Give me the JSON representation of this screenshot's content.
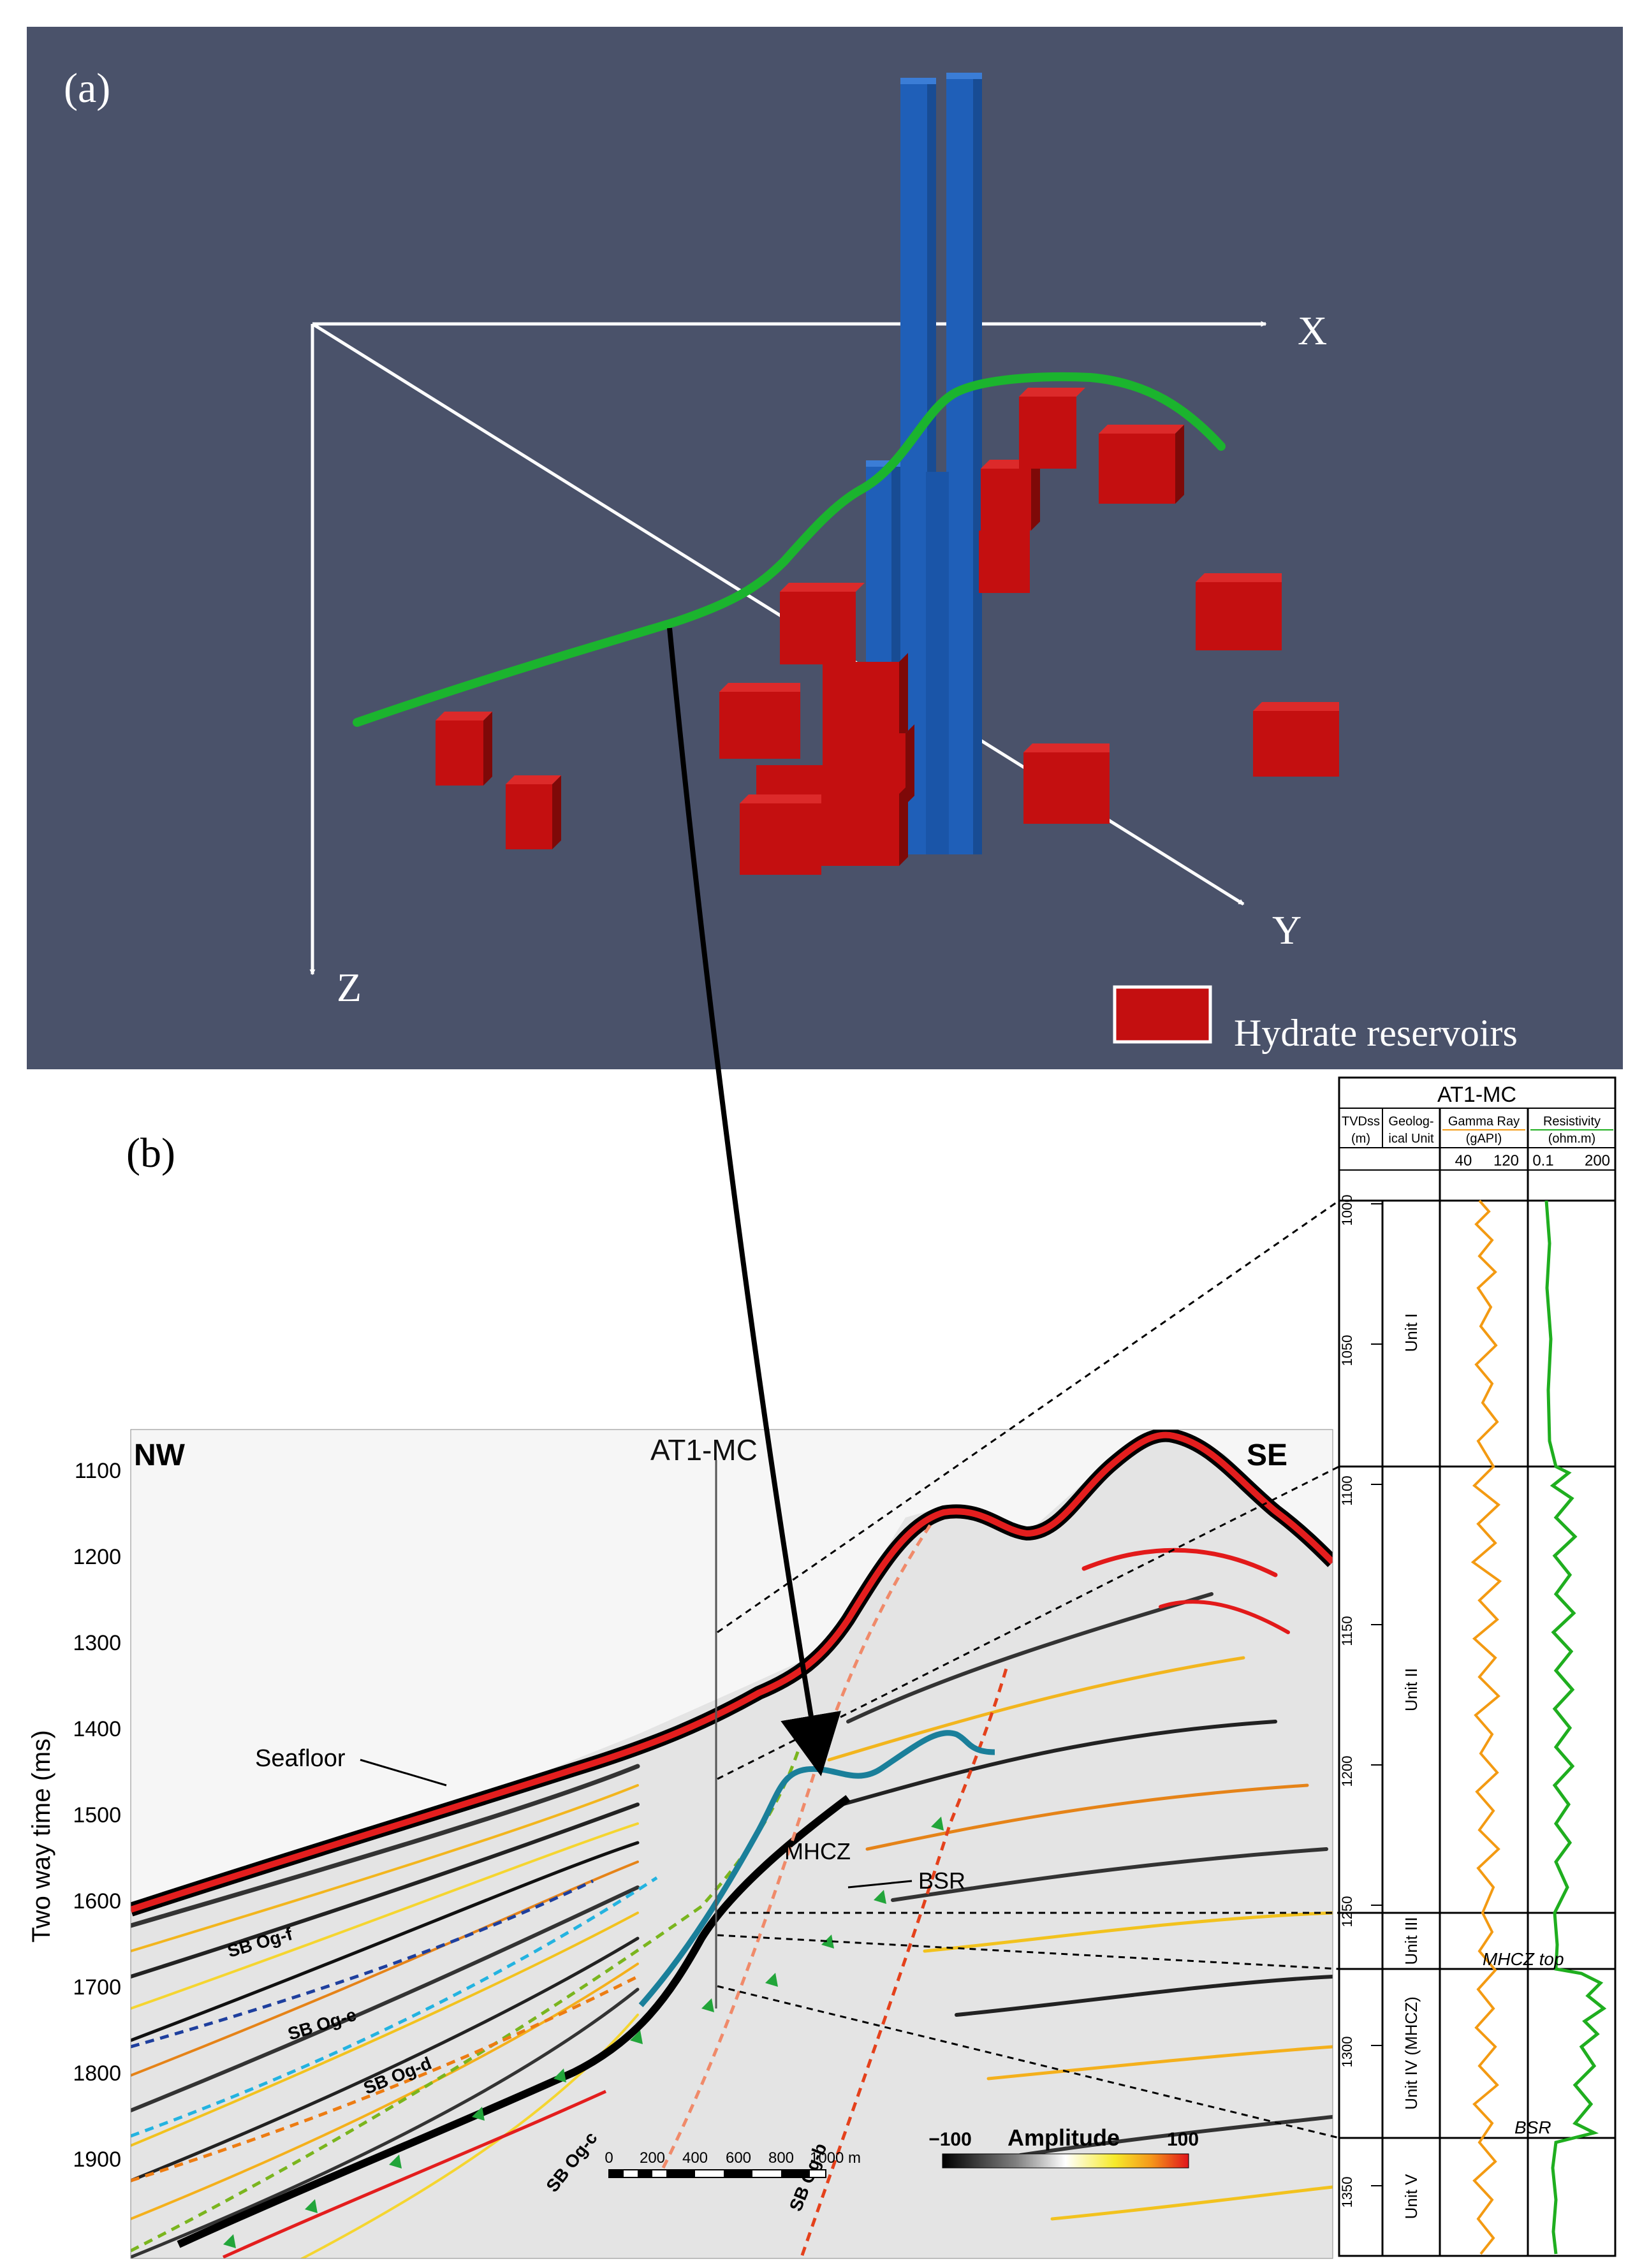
{
  "panel_a": {
    "label": "(a)",
    "axes": {
      "x": "X",
      "y": "Y",
      "z": "Z"
    },
    "legend": {
      "label": "Hydrate reservoirs",
      "color": "#c40f10"
    },
    "colors": {
      "background": "#4a526a",
      "pillar": "#1f5fb8",
      "line": "#1bb42e"
    }
  },
  "panel_b": {
    "label": "(b)",
    "direction_left": "NW",
    "direction_right": "SE",
    "well_name": "AT1-MC",
    "y_axis": {
      "label": "Two way time (ms)",
      "ticks": [
        "1100",
        "1200",
        "1300",
        "1400",
        "1500",
        "1600",
        "1700",
        "1800",
        "1900"
      ]
    },
    "annotations": {
      "seafloor": "Seafloor",
      "mhcz": "MHCZ",
      "bsr": "BSR",
      "sb_og_f": "SB Og-f",
      "sb_og_e": "SB Og-e",
      "sb_og_d": "SB Og-d",
      "sb_og_c": "SB Og-c",
      "sb_og_b": "SB Og-b"
    },
    "scale_bar": {
      "ticks": [
        "0",
        "200",
        "400",
        "600",
        "800",
        "1000 m"
      ]
    },
    "amplitude": {
      "title": "Amplitude",
      "min": "−100",
      "max": "100"
    }
  },
  "well_log": {
    "title": "AT1-MC",
    "columns": {
      "tvdss": {
        "line1": "TVDss",
        "line2": "(m)"
      },
      "unit": {
        "line1": "Geolog-",
        "line2": "ical Unit"
      },
      "gamma": {
        "line1": "Gamma Ray",
        "line2": "(gAPI)",
        "min": "40",
        "max": "120",
        "color": "#f39a12"
      },
      "resistivity": {
        "line1": "Resistivity",
        "line2": "(ohm.m)",
        "min": "0.1",
        "max": "200",
        "color": "#1fae1f"
      }
    },
    "depth_ticks": [
      "1000",
      "1050",
      "1100",
      "1150",
      "1200",
      "1250",
      "1300",
      "1350"
    ],
    "units": [
      "Unit I",
      "Unit II",
      "Unit III",
      "Unit IV (MHCZ)",
      "Unit V"
    ],
    "markers": {
      "mhcz_top": "MHCZ top",
      "bsr": "BSR"
    }
  }
}
